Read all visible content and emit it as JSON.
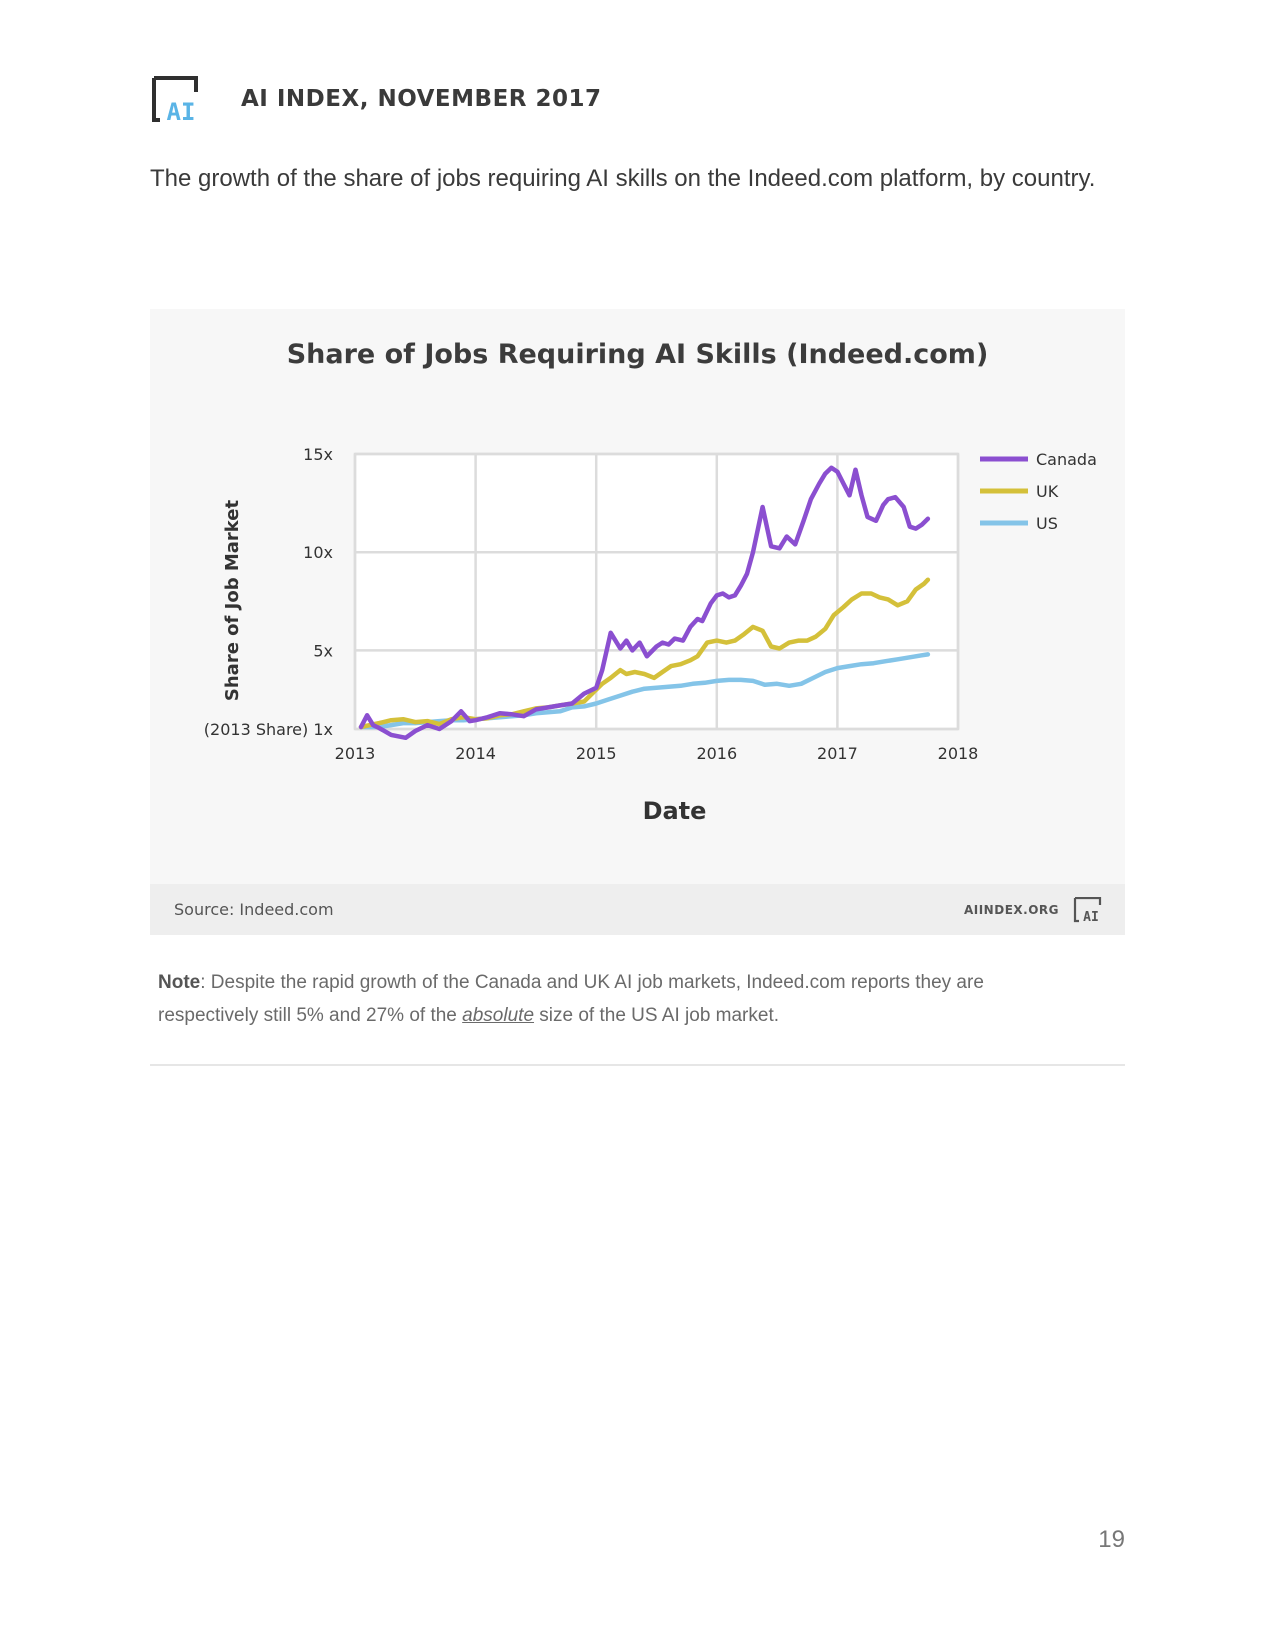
{
  "header": {
    "title": "AI INDEX, NOVEMBER 2017",
    "logo_text": "AI"
  },
  "intro": "The growth of the share of jobs requiring AI skills on the Indeed.com platform, by country.",
  "source": {
    "text": "Source: Indeed.com",
    "site": "AIINDEX.ORG"
  },
  "note": {
    "label": "Note",
    "text_before": ": Despite the rapid growth of the Canada and UK AI job markets, Indeed.com reports they are respectively still 5% and 27% of the ",
    "emphasis": "absolute",
    "text_after": " size of the US AI job market."
  },
  "page_number": "19",
  "colors": {
    "canada": "#8b4fd0",
    "uk": "#d4c03a",
    "us": "#84c4e8",
    "grid": "#dcdcdc",
    "panel": "#f7f7f7",
    "logo_dark": "#2f2f2f",
    "logo_accent": "#5ab4e6"
  },
  "chart_data": {
    "type": "line",
    "title": "Share of Jobs Requiring AI Skills (Indeed.com)",
    "xlabel": "Date",
    "ylabel": "Share of Job Market",
    "xlim": [
      2013,
      2018
    ],
    "ylim": [
      1,
      15
    ],
    "x_ticks": [
      {
        "value": 2013,
        "label": "2013"
      },
      {
        "value": 2014,
        "label": "2014"
      },
      {
        "value": 2015,
        "label": "2015"
      },
      {
        "value": 2016,
        "label": "2016"
      },
      {
        "value": 2017,
        "label": "2017"
      },
      {
        "value": 2018,
        "label": "2018"
      }
    ],
    "y_ticks": [
      {
        "value": 1,
        "label": "(2013 Share) 1x"
      },
      {
        "value": 5,
        "label": "5x"
      },
      {
        "value": 10,
        "label": "10x"
      },
      {
        "value": 15,
        "label": "15x"
      }
    ],
    "grid": true,
    "legend_position": "right",
    "series": [
      {
        "name": "Canada",
        "x": [
          2013.05,
          2013.1,
          2013.15,
          2013.2,
          2013.3,
          2013.42,
          2013.5,
          2013.6,
          2013.7,
          2013.8,
          2013.88,
          2013.95,
          2014.0,
          2014.1,
          2014.2,
          2014.3,
          2014.4,
          2014.5,
          2014.6,
          2014.7,
          2014.8,
          2014.9,
          2015.0,
          2015.05,
          2015.12,
          2015.2,
          2015.25,
          2015.3,
          2015.36,
          2015.42,
          2015.5,
          2015.55,
          2015.6,
          2015.65,
          2015.72,
          2015.78,
          2015.84,
          2015.88,
          2015.95,
          2016.0,
          2016.05,
          2016.1,
          2016.15,
          2016.2,
          2016.25,
          2016.3,
          2016.38,
          2016.45,
          2016.52,
          2016.58,
          2016.65,
          2016.72,
          2016.78,
          2016.85,
          2016.9,
          2016.95,
          2017.0,
          2017.05,
          2017.1,
          2017.15,
          2017.2,
          2017.25,
          2017.32,
          2017.38,
          2017.42,
          2017.48,
          2017.55,
          2017.6,
          2017.65,
          2017.7,
          2017.75
        ],
        "y": [
          1.1,
          1.7,
          1.2,
          1.05,
          0.7,
          0.55,
          0.9,
          1.2,
          1.0,
          1.4,
          1.9,
          1.4,
          1.45,
          1.6,
          1.8,
          1.75,
          1.65,
          2.0,
          2.1,
          2.2,
          2.3,
          2.8,
          3.1,
          4.0,
          5.9,
          5.1,
          5.5,
          5.0,
          5.4,
          4.7,
          5.2,
          5.4,
          5.3,
          5.6,
          5.5,
          6.2,
          6.6,
          6.5,
          7.4,
          7.8,
          7.9,
          7.7,
          7.8,
          8.3,
          8.9,
          10.0,
          12.3,
          10.3,
          10.2,
          10.8,
          10.4,
          11.6,
          12.7,
          13.5,
          14.0,
          14.3,
          14.1,
          13.5,
          12.9,
          14.2,
          12.9,
          11.8,
          11.6,
          12.4,
          12.7,
          12.8,
          12.3,
          11.3,
          11.2,
          11.4,
          11.7
        ]
      },
      {
        "name": "UK",
        "x": [
          2013.05,
          2013.2,
          2013.3,
          2013.4,
          2013.5,
          2013.6,
          2013.7,
          2013.8,
          2013.9,
          2014.0,
          2014.1,
          2014.2,
          2014.3,
          2014.4,
          2014.5,
          2014.6,
          2014.7,
          2014.8,
          2014.9,
          2015.0,
          2015.05,
          2015.12,
          2015.2,
          2015.25,
          2015.32,
          2015.4,
          2015.48,
          2015.55,
          2015.62,
          2015.7,
          2015.78,
          2015.84,
          2015.92,
          2016.0,
          2016.08,
          2016.15,
          2016.22,
          2016.3,
          2016.38,
          2016.45,
          2016.52,
          2016.6,
          2016.68,
          2016.75,
          2016.82,
          2016.9,
          2016.97,
          2017.05,
          2017.12,
          2017.2,
          2017.28,
          2017.35,
          2017.42,
          2017.5,
          2017.58,
          2017.65,
          2017.72,
          2017.75
        ],
        "y": [
          1.1,
          1.3,
          1.45,
          1.5,
          1.35,
          1.4,
          1.25,
          1.5,
          1.6,
          1.5,
          1.55,
          1.7,
          1.75,
          1.9,
          2.05,
          2.1,
          2.2,
          2.3,
          2.4,
          3.0,
          3.3,
          3.6,
          4.0,
          3.8,
          3.9,
          3.8,
          3.6,
          3.9,
          4.2,
          4.3,
          4.5,
          4.7,
          5.4,
          5.5,
          5.4,
          5.5,
          5.8,
          6.2,
          6.0,
          5.2,
          5.1,
          5.4,
          5.5,
          5.5,
          5.7,
          6.1,
          6.8,
          7.2,
          7.6,
          7.9,
          7.9,
          7.7,
          7.6,
          7.3,
          7.5,
          8.1,
          8.4,
          8.6
        ]
      },
      {
        "name": "US",
        "x": [
          2013.05,
          2013.2,
          2013.3,
          2013.4,
          2013.5,
          2013.6,
          2013.7,
          2013.8,
          2013.9,
          2014.0,
          2014.1,
          2014.2,
          2014.3,
          2014.4,
          2014.5,
          2014.6,
          2014.7,
          2014.8,
          2014.9,
          2015.0,
          2015.1,
          2015.2,
          2015.3,
          2015.4,
          2015.5,
          2015.6,
          2015.7,
          2015.8,
          2015.9,
          2016.0,
          2016.1,
          2016.2,
          2016.3,
          2016.4,
          2016.5,
          2016.6,
          2016.7,
          2016.8,
          2016.9,
          2017.0,
          2017.1,
          2017.2,
          2017.3,
          2017.4,
          2017.5,
          2017.6,
          2017.7,
          2017.75
        ],
        "y": [
          1.1,
          1.1,
          1.2,
          1.3,
          1.3,
          1.35,
          1.4,
          1.45,
          1.45,
          1.5,
          1.55,
          1.6,
          1.65,
          1.7,
          1.8,
          1.85,
          1.9,
          2.1,
          2.15,
          2.3,
          2.5,
          2.7,
          2.9,
          3.05,
          3.1,
          3.15,
          3.2,
          3.3,
          3.35,
          3.45,
          3.5,
          3.5,
          3.45,
          3.25,
          3.3,
          3.2,
          3.3,
          3.6,
          3.9,
          4.1,
          4.2,
          4.3,
          4.35,
          4.45,
          4.55,
          4.65,
          4.75,
          4.8
        ]
      }
    ]
  }
}
